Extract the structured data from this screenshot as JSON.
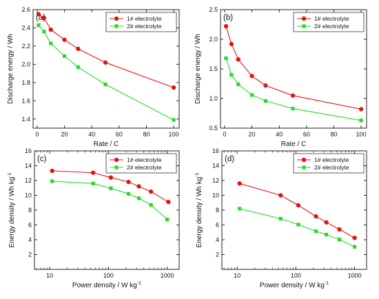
{
  "chart_data": [
    {
      "type": "line",
      "panel_label": "(a)",
      "xlabel": "Rate / C",
      "ylabel": "Discharge energy / Wh",
      "xscale": "linear",
      "xlim": [
        -3,
        104
      ],
      "ylim": [
        1.3,
        2.6
      ],
      "xticks": [
        0,
        20,
        40,
        60,
        80,
        100
      ],
      "yticks": [
        1.4,
        1.6,
        1.8,
        2.0,
        2.2,
        2.4,
        2.6
      ],
      "ytick_labels": [
        "1.4",
        "1.6",
        "1.8",
        "2.0",
        "2.2",
        "2.4",
        "2.6"
      ],
      "legend_position": "top-right",
      "series": [
        {
          "name": "1# electrolyte",
          "color": "#ee1111",
          "marker": "circle",
          "x": [
            1,
            5,
            10,
            20,
            30,
            50,
            100
          ],
          "y": [
            2.55,
            2.51,
            2.38,
            2.27,
            2.17,
            2.02,
            1.745
          ]
        },
        {
          "name": "2# electrolyte",
          "color": "#22dd22",
          "marker": "square",
          "x": [
            1,
            5,
            10,
            20,
            30,
            50,
            100
          ],
          "y": [
            2.43,
            2.36,
            2.23,
            2.09,
            1.97,
            1.78,
            1.39
          ]
        }
      ]
    },
    {
      "type": "line",
      "panel_label": "(b)",
      "xlabel": "Rate / C",
      "ylabel": "Discharge energy / Wh",
      "xscale": "linear",
      "xlim": [
        -3,
        104
      ],
      "ylim": [
        0.5,
        2.5
      ],
      "xticks": [
        0,
        20,
        40,
        60,
        80,
        100
      ],
      "yticks": [
        0.5,
        1.0,
        1.5,
        2.0,
        2.5
      ],
      "ytick_labels": [
        "0.5",
        "1.0",
        "1.5",
        "2.0",
        "2.5"
      ],
      "legend_position": "top-right",
      "series": [
        {
          "name": "1# electrolyte",
          "color": "#ee1111",
          "marker": "circle",
          "x": [
            1,
            5,
            10,
            20,
            30,
            50,
            100
          ],
          "y": [
            2.22,
            1.92,
            1.66,
            1.38,
            1.22,
            1.05,
            0.82
          ]
        },
        {
          "name": "2# electrolyte",
          "color": "#22dd22",
          "marker": "square",
          "x": [
            1,
            5,
            10,
            20,
            30,
            50,
            100
          ],
          "y": [
            1.68,
            1.4,
            1.24,
            1.06,
            0.96,
            0.83,
            0.63
          ]
        }
      ]
    },
    {
      "type": "line",
      "panel_label": "(c)",
      "xlabel": "Power density / W kg",
      "xlabel_sup": "-1",
      "ylabel": "Energy density / Wh kg",
      "ylabel_sup": "-1",
      "xscale": "log",
      "xlim": [
        5.5,
        1600
      ],
      "ylim": [
        0,
        16
      ],
      "xticks": [
        10,
        100,
        1000
      ],
      "xtick_labels": [
        "10",
        "100",
        "1000"
      ],
      "yticks": [
        2,
        4,
        6,
        8,
        10,
        12,
        14,
        16
      ],
      "ytick_labels": [
        "2",
        "4",
        "6",
        "8",
        "10",
        "12",
        "14",
        "16"
      ],
      "legend_position": "top-right",
      "series": [
        {
          "name": "1# electrolyte",
          "color": "#ee1111",
          "marker": "circle",
          "x": [
            11,
            55,
            110,
            220,
            330,
            530,
            1050
          ],
          "y": [
            13.3,
            13.05,
            12.4,
            11.8,
            11.2,
            10.5,
            9.1
          ]
        },
        {
          "name": "2# electrolyte",
          "color": "#22dd22",
          "marker": "square",
          "x": [
            11,
            55,
            110,
            220,
            330,
            530,
            1000
          ],
          "y": [
            11.9,
            11.6,
            10.95,
            10.2,
            9.6,
            8.7,
            6.75
          ]
        }
      ]
    },
    {
      "type": "line",
      "panel_label": "(d)",
      "xlabel": "Power density / W kg",
      "xlabel_sup": "-1",
      "ylabel": "Energy density / Wh kg",
      "ylabel_sup": "-1",
      "xscale": "log",
      "xlim": [
        5.5,
        1600
      ],
      "ylim": [
        0,
        16
      ],
      "xticks": [
        10,
        100,
        1000
      ],
      "xtick_labels": [
        "10",
        "100",
        "1000"
      ],
      "yticks": [
        2,
        4,
        6,
        8,
        10,
        12,
        14,
        16
      ],
      "ytick_labels": [
        "2",
        "4",
        "6",
        "8",
        "10",
        "12",
        "14",
        "16"
      ],
      "legend_position": "top-right",
      "series": [
        {
          "name": "1# electrolyte",
          "color": "#ee1111",
          "marker": "circle",
          "x": [
            11,
            55,
            110,
            220,
            330,
            550,
            1000
          ],
          "y": [
            11.6,
            10.0,
            8.65,
            7.15,
            6.35,
            5.4,
            4.25
          ]
        },
        {
          "name": "2# electrolyte",
          "color": "#22dd22",
          "marker": "square",
          "x": [
            11,
            55,
            110,
            220,
            330,
            550,
            1000
          ],
          "y": [
            8.2,
            6.85,
            6.05,
            5.15,
            4.7,
            4.05,
            3.05
          ]
        }
      ]
    }
  ]
}
